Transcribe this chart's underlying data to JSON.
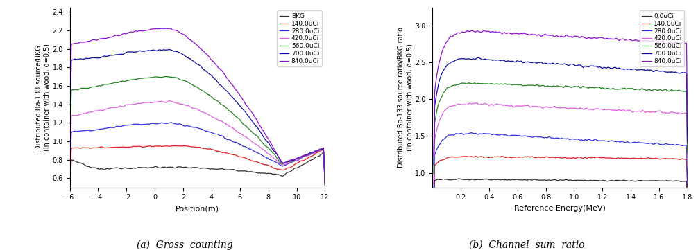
{
  "figure_width": 10.06,
  "figure_height": 3.61,
  "background_color": "#ffffff",
  "plot_a": {
    "xlabel": "Position(m)",
    "ylabel": "Distributed Ba-133 source/BKG\n(in container with wood, d=0.5)",
    "caption": "(a)  Gross  counting",
    "xlim": [
      -6,
      12
    ],
    "ylim": [
      0.5,
      2.45
    ],
    "xticks": [
      -6,
      -4,
      -2,
      0,
      2,
      4,
      6,
      8,
      10,
      12
    ],
    "yticks": [
      0.6,
      0.8,
      1.0,
      1.2,
      1.4,
      1.6,
      1.8,
      2.0,
      2.2,
      2.4
    ],
    "legend_labels": [
      "BKG",
      "140.0uCi",
      "280.0uCi",
      "420.0uCi",
      "560.0uCi",
      "700.0uCi",
      "840.0uCi"
    ],
    "line_colors": [
      "#303030",
      "#e02020",
      "#3030e0",
      "#e060e0",
      "#208020",
      "#1010a0",
      "#9010d0"
    ]
  },
  "plot_b": {
    "xlabel": "Reference Energy(MeV)",
    "ylabel": "Distributed Ba-133 source ratio/BKG ratio\n(in container with wood, d=0.5)",
    "caption": "(b)  Channel  sum  ratio",
    "xlim": [
      0,
      1.8
    ],
    "ylim": [
      0.8,
      3.25
    ],
    "xticks": [
      0.2,
      0.4,
      0.6,
      0.8,
      1.0,
      1.2,
      1.4,
      1.6,
      1.8
    ],
    "yticks": [
      1.0,
      1.5,
      2.0,
      2.5,
      3.0
    ],
    "legend_labels": [
      "0.0uCi",
      "140.0uCi",
      "280.0uCi",
      "420.0uCi",
      "560.0uCi",
      "700.0uCi",
      "840.0uCi"
    ],
    "line_colors": [
      "#303030",
      "#e02020",
      "#3030e0",
      "#e060e0",
      "#208020",
      "#1010a0",
      "#9010d0"
    ]
  }
}
